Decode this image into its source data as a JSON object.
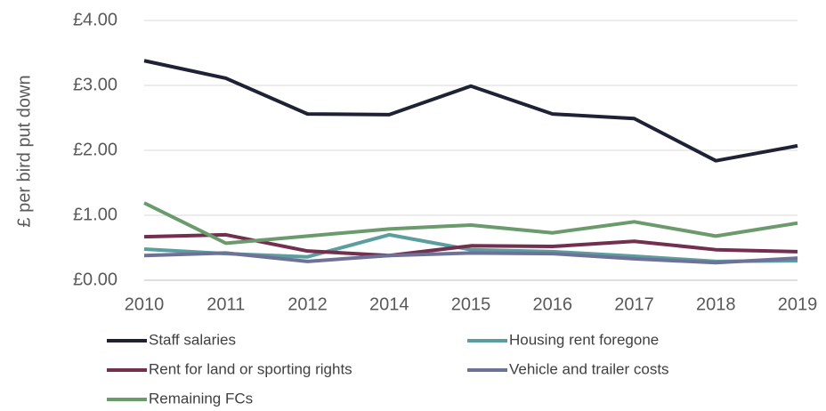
{
  "chart_data": {
    "type": "line",
    "y_label": "£ per bird put down",
    "categories": [
      "2010",
      "2011",
      "2012",
      "2014",
      "2015",
      "2016",
      "2017",
      "2018",
      "2019"
    ],
    "ylim": [
      0,
      4
    ],
    "yticks": [
      {
        "value": 0,
        "label": "£0.00"
      },
      {
        "value": 1,
        "label": "£1.00"
      },
      {
        "value": 2,
        "label": "£2.00"
      },
      {
        "value": 3,
        "label": "£3.00"
      },
      {
        "value": 4,
        "label": "£4.00"
      }
    ],
    "grid": true,
    "legend": "bottom",
    "series": [
      {
        "name": "Staff salaries",
        "color": "#1f2235",
        "values": [
          3.38,
          3.11,
          2.56,
          2.55,
          2.99,
          2.56,
          2.49,
          1.84,
          2.07
        ]
      },
      {
        "name": "Housing rent foregone",
        "color": "#5b9ea0",
        "values": [
          0.48,
          0.41,
          0.36,
          0.7,
          0.47,
          0.44,
          0.37,
          0.29,
          0.3
        ]
      },
      {
        "name": "Rent for land or sporting rights",
        "color": "#722f4e",
        "values": [
          0.67,
          0.7,
          0.45,
          0.38,
          0.53,
          0.52,
          0.6,
          0.47,
          0.44
        ]
      },
      {
        "name": "Vehicle and trailer costs",
        "color": "#6e7298",
        "values": [
          0.38,
          0.42,
          0.29,
          0.38,
          0.42,
          0.41,
          0.33,
          0.27,
          0.34
        ]
      },
      {
        "name": "Remaining FCs",
        "color": "#6b9a6c",
        "values": [
          1.19,
          0.57,
          0.68,
          0.79,
          0.85,
          0.73,
          0.9,
          0.68,
          0.88
        ]
      }
    ]
  }
}
